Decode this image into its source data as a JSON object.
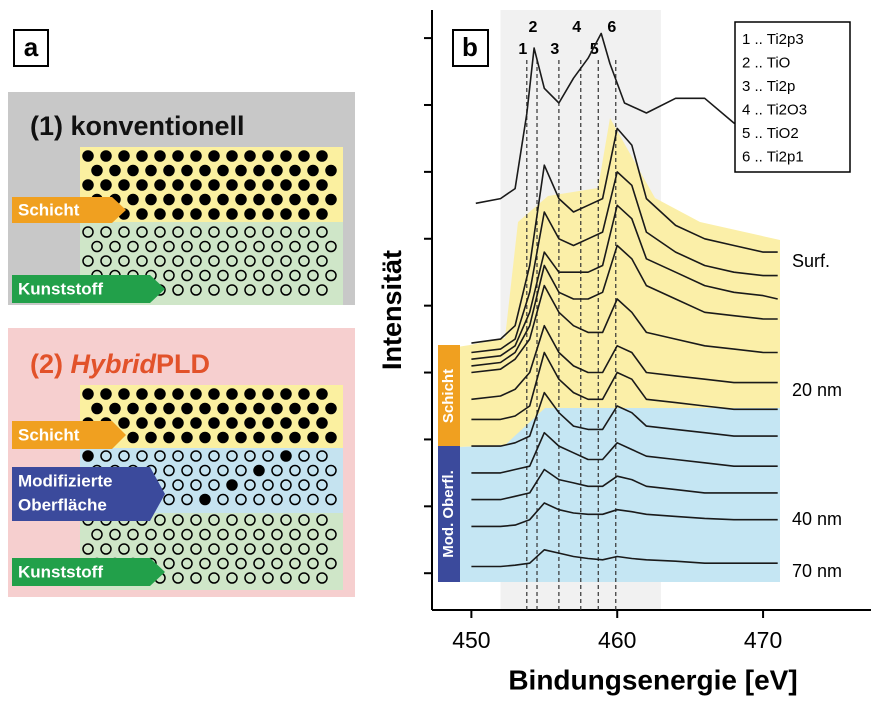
{
  "panel_a": {
    "label": "a",
    "conventional": {
      "number": "(1)",
      "title": "konventionell",
      "layer": "Schicht",
      "substrate": "Kunststoff"
    },
    "hybrid": {
      "number": "(2)",
      "title_italic": "Hybrid",
      "title_rest": "PLD",
      "layer": "Schicht",
      "modified_line1": "Modifizierte",
      "modified_line2": "Oberfläche",
      "substrate": "Kunststoff"
    }
  },
  "chart_data": {
    "type": "line",
    "panel_label": "b",
    "x_label": "Bindungsenergie [eV]",
    "y_label": "Intensität",
    "xlim": [
      447.3,
      477.4
    ],
    "xticks": [
      450,
      460,
      470
    ],
    "ylim": [
      0.45,
      9.42
    ],
    "yticks": [
      1,
      2,
      3,
      4,
      5,
      6,
      7,
      8,
      9
    ],
    "shaded_range": [
      452,
      463
    ],
    "reference_lines": [
      {
        "label": "1",
        "x": 453.8
      },
      {
        "label": "2",
        "x": 454.5
      },
      {
        "label": "3",
        "x": 456.0
      },
      {
        "label": "4",
        "x": 457.5
      },
      {
        "label": "5",
        "x": 458.7
      },
      {
        "label": "6",
        "x": 459.9
      }
    ],
    "legend": [
      "1 .. Ti2p3",
      "2 .. TiO",
      "3 .. Ti2p",
      "4 .. Ti2O3",
      "5 .. TiO2",
      "6 .. Ti2p1"
    ],
    "annotations": [
      "Surf.",
      "20 nm",
      "40 nm",
      "70 nm"
    ],
    "side_labels": [
      "Schicht",
      "Mod. Oberfl."
    ],
    "color": "#1a1a1a",
    "x": [
      450,
      452,
      453,
      454,
      455,
      456,
      457,
      458,
      459,
      460,
      461,
      462,
      464,
      466,
      468,
      470,
      471
    ],
    "series": [
      {
        "x": [
          450.3,
          452,
          453,
          453.8,
          454.3,
          455,
          456,
          457,
          458,
          458.9,
          459.5,
          460.5,
          462,
          464,
          466,
          468,
          470,
          472,
          475
        ],
        "values": [
          6.53,
          6.6,
          6.75,
          7.87,
          8.85,
          8.25,
          8.03,
          8.4,
          8.7,
          9.07,
          8.62,
          8.03,
          7.88,
          8.1,
          8.1,
          7.73,
          7.58,
          7.5,
          7.43
        ]
      },
      {
        "values": [
          4.44,
          4.5,
          4.7,
          5.6,
          7.1,
          6.6,
          6.4,
          6.5,
          6.6,
          7.65,
          7.4,
          6.6,
          6.2,
          6.0,
          5.9,
          5.8,
          5.8
        ]
      },
      {
        "values": [
          4.3,
          4.35,
          4.5,
          5.2,
          6.4,
          6.0,
          5.9,
          6.0,
          6.1,
          7.0,
          6.8,
          6.1,
          5.8,
          5.6,
          5.5,
          5.45,
          5.45
        ]
      },
      {
        "values": [
          4.2,
          4.25,
          4.4,
          4.9,
          5.8,
          5.5,
          5.5,
          5.5,
          5.6,
          6.5,
          6.3,
          5.7,
          5.5,
          5.3,
          5.2,
          5.15,
          5.1
        ]
      },
      {
        "values": [
          4.1,
          4.15,
          4.3,
          4.7,
          5.6,
          5.2,
          5.1,
          5.1,
          5.2,
          5.9,
          5.7,
          5.3,
          5.1,
          4.9,
          4.85,
          4.8,
          4.8
        ]
      },
      {
        "values": [
          4.0,
          4.05,
          4.2,
          4.5,
          5.3,
          4.9,
          4.7,
          4.6,
          4.6,
          5.1,
          4.9,
          4.6,
          4.5,
          4.4,
          4.35,
          4.3,
          4.3
        ]
      },
      {
        "values": [
          3.6,
          3.65,
          3.75,
          4.0,
          4.7,
          4.3,
          4.1,
          4.0,
          4.0,
          4.4,
          4.3,
          4.0,
          3.95,
          3.9,
          3.85,
          3.85,
          3.85
        ]
      },
      {
        "values": [
          3.3,
          3.3,
          3.35,
          3.5,
          4.3,
          3.9,
          3.7,
          3.6,
          3.6,
          4.0,
          3.9,
          3.6,
          3.55,
          3.5,
          3.45,
          3.45,
          3.45
        ]
      },
      {
        "values": [
          2.9,
          2.9,
          2.95,
          3.05,
          3.7,
          3.4,
          3.2,
          3.15,
          3.15,
          3.5,
          3.4,
          3.2,
          3.15,
          3.1,
          3.05,
          3.05,
          3.05
        ]
      },
      {
        "values": [
          2.5,
          2.5,
          2.55,
          2.6,
          3.1,
          2.9,
          2.8,
          2.7,
          2.7,
          2.95,
          2.85,
          2.75,
          2.7,
          2.65,
          2.6,
          2.6,
          2.6
        ]
      },
      {
        "values": [
          2.1,
          2.1,
          2.15,
          2.2,
          2.55,
          2.4,
          2.35,
          2.3,
          2.3,
          2.45,
          2.4,
          2.3,
          2.25,
          2.2,
          2.2,
          2.2,
          2.2
        ]
      },
      {
        "values": [
          1.7,
          1.7,
          1.72,
          1.8,
          2.05,
          1.95,
          1.9,
          1.88,
          1.88,
          1.95,
          1.92,
          1.88,
          1.85,
          1.82,
          1.8,
          1.8,
          1.8
        ]
      },
      {
        "values": [
          1.1,
          1.1,
          1.12,
          1.15,
          1.35,
          1.3,
          1.25,
          1.22,
          1.2,
          1.25,
          1.22,
          1.2,
          1.18,
          1.15,
          1.15,
          1.15,
          1.15
        ]
      }
    ]
  }
}
